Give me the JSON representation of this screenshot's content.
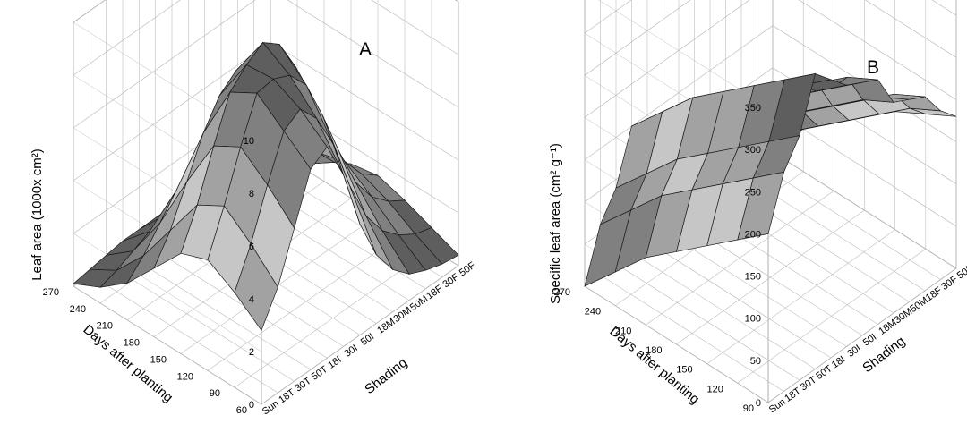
{
  "chart_data": [
    {
      "type": "surface3d",
      "title": "A",
      "xlabel": "Days after planting",
      "ylabel": "Shading",
      "zlabel": "Leaf area (1000x cm²)",
      "x_ticks": [
        "60",
        "90",
        "120",
        "150",
        "180",
        "210",
        "240",
        "270"
      ],
      "y_ticks": [
        "Sun",
        "18T",
        "30T",
        "50T",
        "18I",
        "30I",
        "50I",
        "18M",
        "30M",
        "50M",
        "18F",
        "30F",
        "50F"
      ],
      "z_ticks": [
        "0",
        "2",
        "4",
        "6",
        "8",
        "10"
      ],
      "zlim": [
        0,
        10
      ],
      "grid": true,
      "values": [
        [
          2.8,
          4.0,
          5.8,
          7.6,
          8.0,
          6.5,
          4.2,
          2.6,
          1.6,
          1.0,
          0.7,
          0.5,
          0.4
        ],
        [
          3.6,
          5.0,
          6.8,
          8.4,
          8.8,
          8.0,
          6.6,
          4.6,
          3.0,
          2.0,
          1.4,
          1.0,
          0.8
        ],
        [
          4.2,
          5.8,
          7.6,
          9.2,
          9.3,
          9.0,
          8.2,
          6.6,
          4.8,
          3.2,
          2.2,
          1.6,
          1.2
        ],
        [
          3.8,
          5.2,
          7.0,
          8.6,
          9.2,
          9.6,
          9.1,
          7.8,
          6.0,
          4.2,
          2.9,
          2.0,
          1.5
        ],
        [
          2.6,
          3.6,
          5.0,
          6.4,
          7.4,
          7.9,
          7.5,
          6.6,
          5.2,
          3.7,
          2.6,
          1.8,
          1.3
        ],
        [
          1.4,
          2.0,
          2.8,
          3.6,
          4.2,
          4.4,
          4.2,
          3.8,
          3.0,
          2.2,
          1.5,
          1.1,
          0.8
        ],
        [
          0.6,
          0.8,
          1.1,
          1.4,
          1.6,
          1.7,
          1.6,
          1.4,
          1.1,
          0.8,
          0.6,
          0.4,
          0.3
        ],
        [
          0.1,
          0.2,
          0.3,
          0.4,
          0.4,
          0.4,
          0.4,
          0.3,
          0.3,
          0.2,
          0.1,
          0.1,
          0.1
        ]
      ]
    },
    {
      "type": "surface3d",
      "title": "B",
      "xlabel": "Days after planting",
      "ylabel": "Shading",
      "zlabel": "Specific leaf area (cm² g⁻¹)",
      "x_ticks": [
        "90",
        "120",
        "150",
        "180",
        "210",
        "240",
        "270"
      ],
      "y_ticks": [
        "Sun",
        "18T",
        "30T",
        "50T",
        "18I",
        "30I",
        "50I",
        "18M",
        "30M",
        "50M",
        "18F",
        "30F",
        "50F"
      ],
      "z_ticks": [
        "0",
        "50",
        "100",
        "150",
        "200",
        "250",
        "300",
        "350"
      ],
      "zlim": [
        0,
        350
      ],
      "grid": true,
      "values": [
        [
          200,
          260,
          290,
          350,
          330,
          310,
          300,
          290,
          250,
          240,
          230,
          200,
          180
        ],
        [
          170,
          230,
          260,
          320,
          300,
          280,
          270,
          270,
          230,
          220,
          210,
          180,
          160
        ],
        [
          140,
          200,
          230,
          290,
          270,
          250,
          240,
          240,
          200,
          190,
          180,
          150,
          140
        ],
        [
          110,
          170,
          200,
          260,
          240,
          220,
          210,
          210,
          170,
          160,
          150,
          120,
          110
        ],
        [
          80,
          140,
          170,
          230,
          210,
          190,
          180,
          180,
          140,
          130,
          120,
          90,
          80
        ],
        [
          40,
          100,
          130,
          190,
          170,
          150,
          140,
          140,
          100,
          90,
          80,
          60,
          50
        ],
        [
          0,
          60,
          90,
          150,
          130,
          110,
          100,
          100,
          60,
          50,
          40,
          20,
          10
        ]
      ]
    }
  ]
}
